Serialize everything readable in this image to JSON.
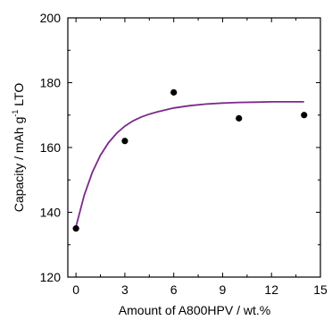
{
  "chart_data": {
    "type": "scatter",
    "xlabel": "Amount of A800HPV / wt.%",
    "ylabel_parts": {
      "main": "Capacity / mAh g",
      "sup": "-1",
      "tail": " LTO"
    },
    "xlim": [
      -0.5,
      15
    ],
    "ylim": [
      120,
      200
    ],
    "xticks": [
      0,
      3,
      6,
      9,
      12,
      15
    ],
    "yticks": [
      120,
      140,
      160,
      180,
      200
    ],
    "grid": false,
    "points": {
      "x": [
        0,
        3,
        6,
        10,
        14
      ],
      "y": [
        135,
        162,
        177,
        169,
        170
      ]
    },
    "fit_curve": {
      "color": "#7a2a8a",
      "x": [
        0,
        0.5,
        1,
        1.5,
        2,
        2.5,
        3,
        3.5,
        4,
        4.5,
        5,
        6,
        7,
        8,
        9,
        10,
        11,
        12,
        13,
        14
      ],
      "y": [
        135.5,
        145.2,
        152.3,
        157.6,
        161.5,
        164.4,
        166.6,
        168.2,
        169.4,
        170.3,
        171.0,
        172.2,
        172.9,
        173.4,
        173.7,
        173.9,
        174.0,
        174.1,
        174.1,
        174.1
      ]
    },
    "marker_color": "#000000"
  }
}
